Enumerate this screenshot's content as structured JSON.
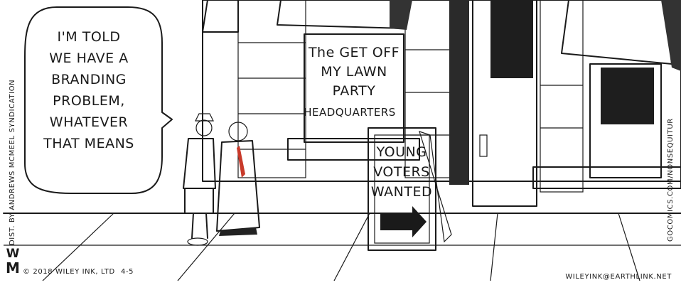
{
  "speech_bubble": {
    "lines": [
      "I'M TOLD",
      "WE HAVE A",
      "BRANDING",
      "PROBLEM,",
      "WHATEVER",
      "THAT MEANS"
    ]
  },
  "window_sign": {
    "lines": [
      "The GET OFF",
      "MY LAWN",
      "PARTY",
      "HEADQUARTERS"
    ]
  },
  "sandwich_board": {
    "lines": [
      "YOUNG",
      "VOTERS",
      "WANTED"
    ]
  },
  "credits": {
    "syndication": "DIST. BY ANDREWS MCMEEL SYNDICATION",
    "website": "GOCOMICS.COM/NONSEQUITUR",
    "logo": [
      "W",
      "M"
    ],
    "copyright": "© 2018 WILEY INK, LTD",
    "date": "4-5",
    "email": "WILEYINK@EARTHLINK.NET"
  }
}
